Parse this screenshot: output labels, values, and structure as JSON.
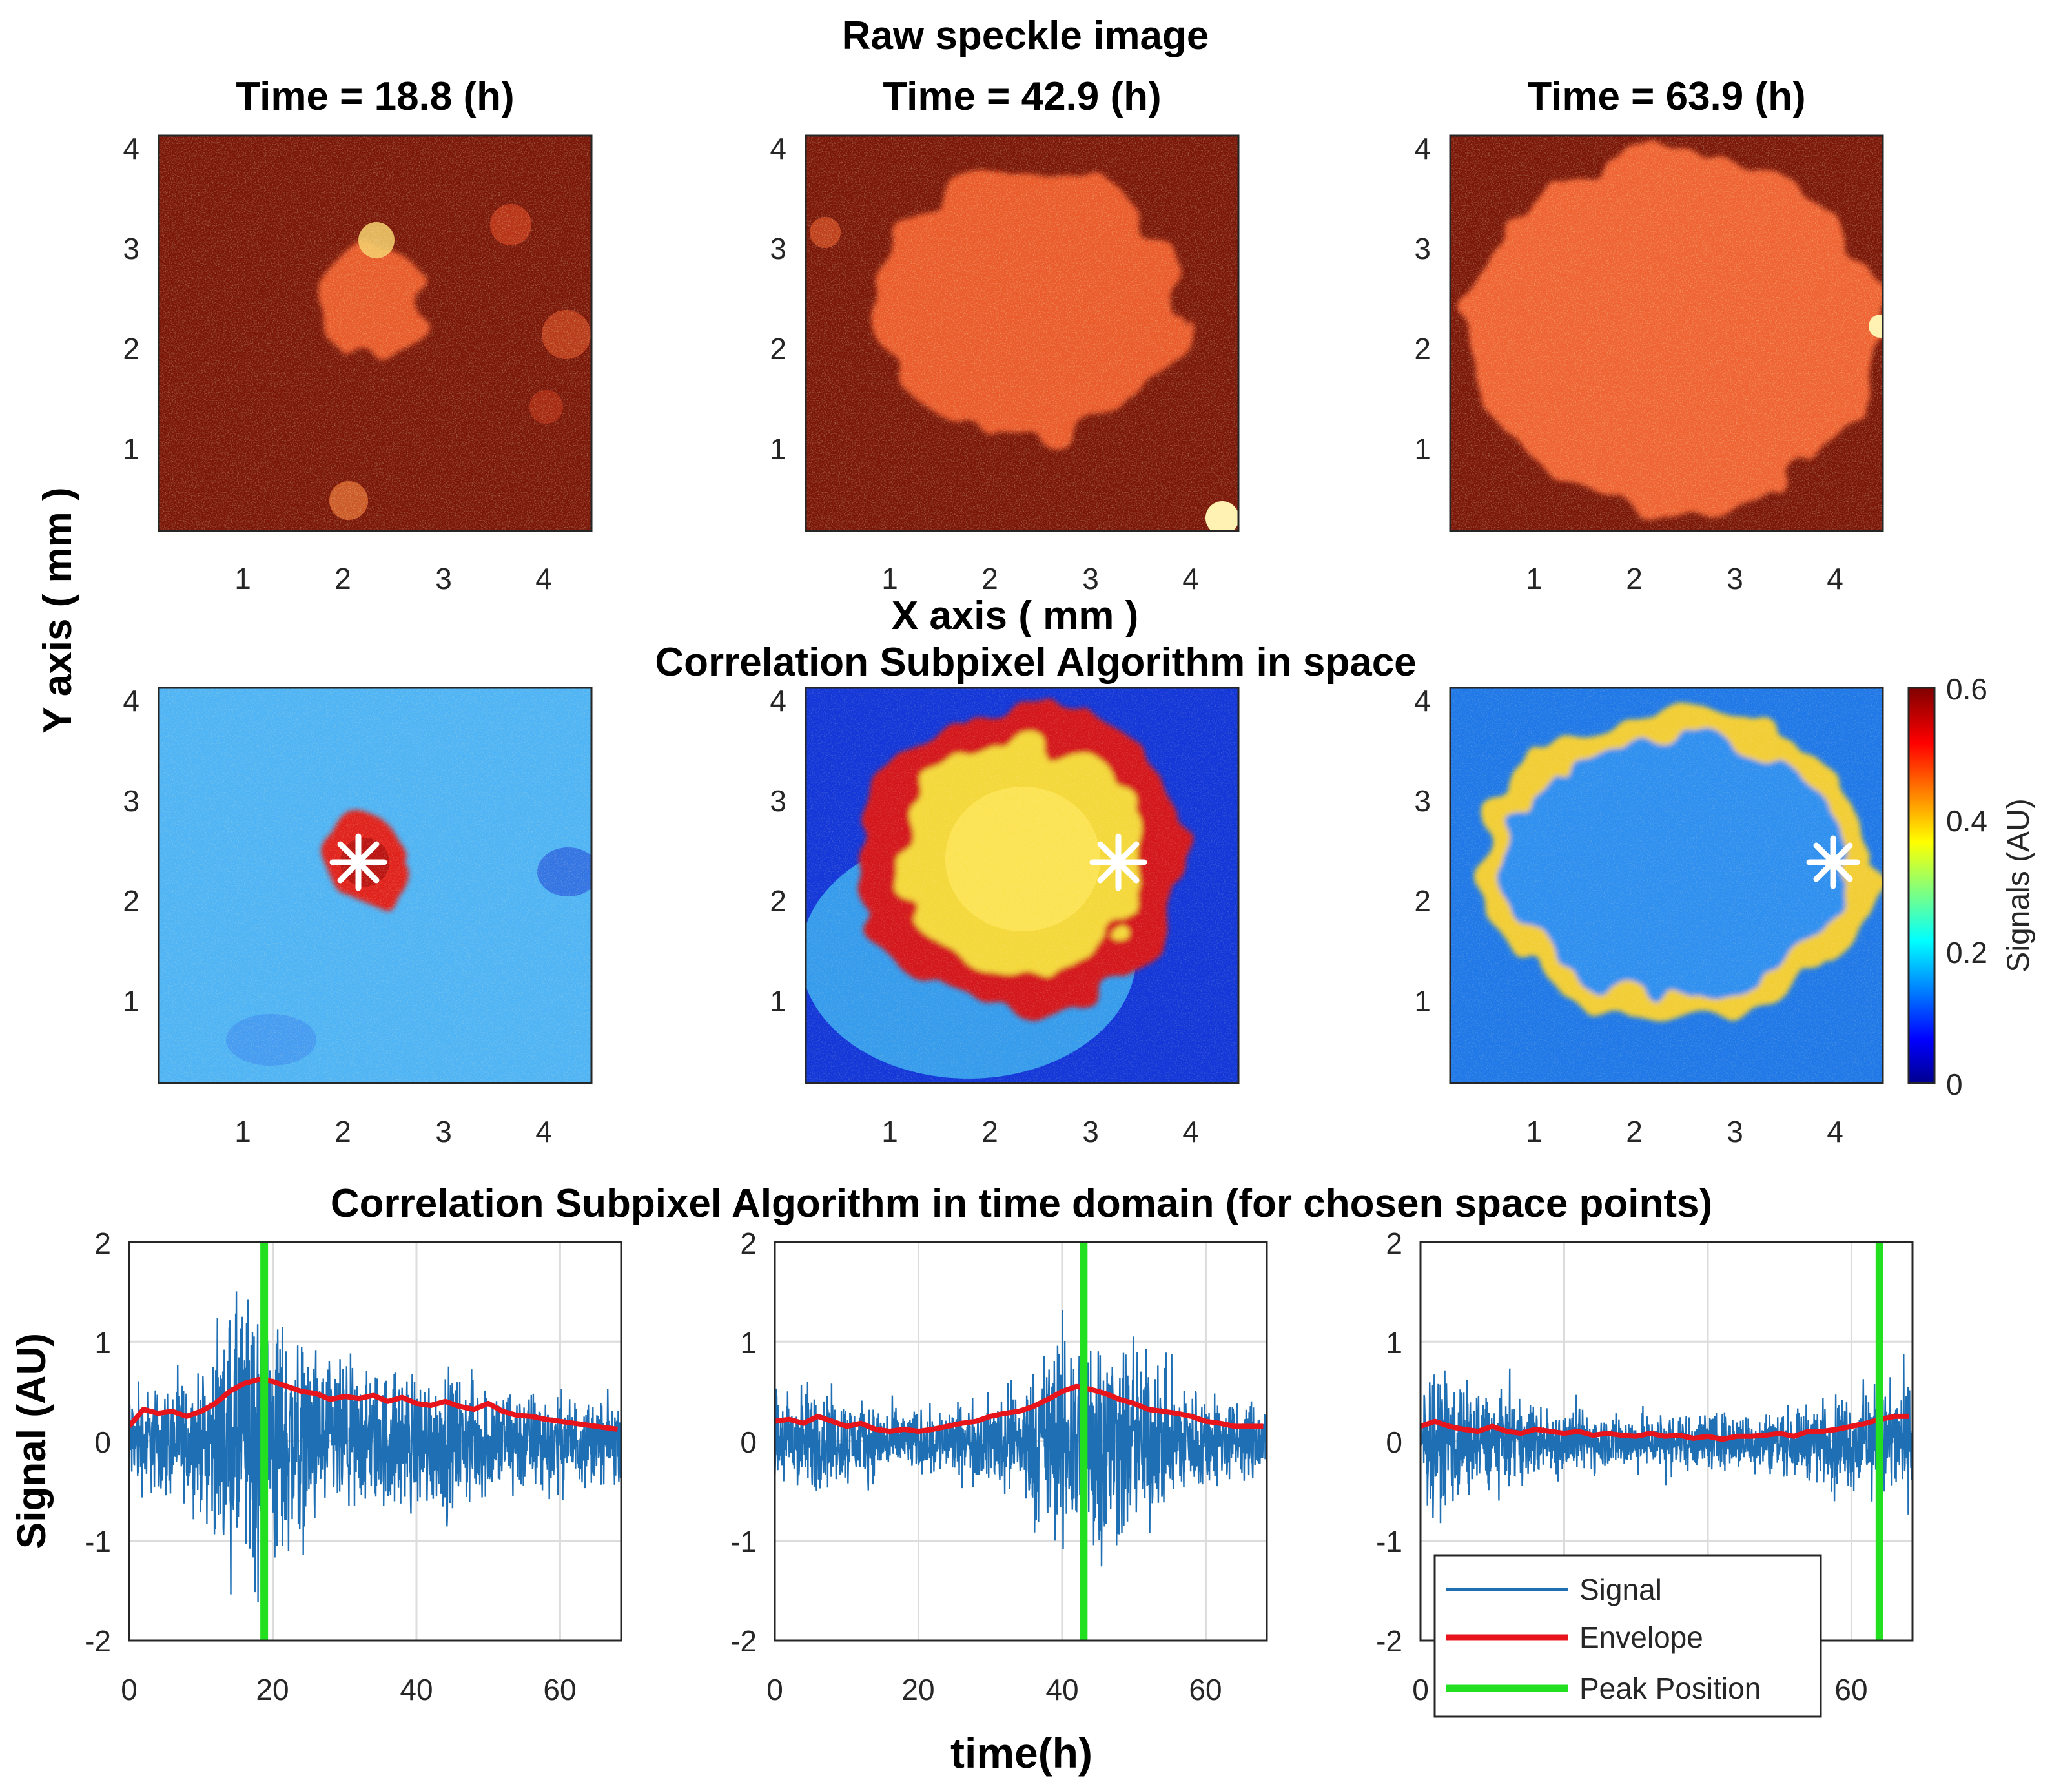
{
  "chart_data": {
    "type": "figure",
    "headings": {
      "row1": "Raw speckle image",
      "row2": "Correlation Subpixel Algorithm in space",
      "row3": "Correlation Subpixel Algorithm in time domain (for chosen space points)"
    },
    "axis_labels": {
      "image_x": "X axis ( mm )",
      "image_y": "Y axis ( mm )",
      "signal_x": "time(h)",
      "signal_y": "Signal (AU)"
    },
    "time_titles": [
      "Time = 18.8 (h)",
      "Time = 42.9 (h)",
      "Time = 63.9 (h)"
    ],
    "image_ticks": {
      "x": [
        "1",
        "2",
        "3",
        "4"
      ],
      "y": [
        "1",
        "2",
        "3",
        "4"
      ]
    },
    "image_extent_mm": {
      "x": [
        0.3,
        4.6
      ],
      "y": [
        0.3,
        4.3
      ]
    },
    "raw_images": [
      {
        "time_h": 18.8,
        "growth_center_mm": [
          2.2,
          2.4
        ],
        "growth_radius_mm": 0.55
      },
      {
        "time_h": 42.9,
        "growth_center_mm": [
          2.6,
          2.45
        ],
        "growth_radius_mm": 1.55
      },
      {
        "time_h": 63.9,
        "growth_center_mm": [
          2.6,
          2.3
        ],
        "growth_radius_mm": 2.1
      }
    ],
    "correlation_maps": [
      {
        "marker_mm": [
          2.2,
          2.4
        ],
        "ring_center_mm": [
          2.2,
          2.4
        ],
        "ring_radius_mm": 0.4
      },
      {
        "marker_mm": [
          3.3,
          2.4
        ],
        "ring_center_mm": [
          2.6,
          2.45
        ],
        "ring_radius_mm": 1.35
      },
      {
        "marker_mm": [
          4.0,
          2.35
        ],
        "ring_center_mm": [
          2.6,
          2.3
        ],
        "ring_radius_mm": 1.95
      }
    ],
    "colorbar": {
      "label": "Signals (AU)",
      "range": [
        0,
        0.6
      ],
      "ticks": [
        "0",
        "0.2",
        "0.4",
        "0.6"
      ],
      "colormap": "jet"
    },
    "signal_axes": {
      "xlim": [
        0,
        68.5
      ],
      "ylim": [
        -2,
        2
      ],
      "xticks": [
        "0",
        "20",
        "40",
        "60"
      ],
      "yticks": [
        "2",
        "1",
        "0",
        "-1",
        "-2"
      ]
    },
    "time_signals": [
      {
        "peak_time_h": 18.8,
        "envelope": {
          "t": [
            0,
            2,
            4,
            6,
            8,
            10,
            12,
            14,
            16,
            18,
            20,
            22,
            24,
            26,
            28,
            30,
            32,
            34,
            36,
            38,
            40,
            42,
            44,
            46,
            48,
            50,
            52,
            54,
            56,
            58,
            60,
            62,
            64,
            66,
            68
          ],
          "v": [
            0.15,
            0.32,
            0.28,
            0.3,
            0.25,
            0.3,
            0.38,
            0.5,
            0.58,
            0.62,
            0.6,
            0.55,
            0.5,
            0.48,
            0.42,
            0.45,
            0.43,
            0.46,
            0.4,
            0.44,
            0.38,
            0.36,
            0.4,
            0.35,
            0.32,
            0.38,
            0.3,
            0.26,
            0.25,
            0.22,
            0.2,
            0.18,
            0.16,
            0.14,
            0.12
          ]
        },
        "amplitude": {
          "t": [
            0,
            5,
            10,
            14,
            18,
            22,
            28,
            34,
            40,
            46,
            52,
            58,
            64,
            68
          ],
          "v": [
            0.7,
            0.8,
            0.9,
            1.8,
            2.3,
            1.6,
            1.1,
            1.0,
            1.0,
            0.9,
            0.8,
            0.7,
            0.6,
            0.55
          ]
        }
      },
      {
        "peak_time_h": 43.0,
        "envelope": {
          "t": [
            0,
            2,
            4,
            6,
            8,
            10,
            12,
            14,
            16,
            18,
            20,
            22,
            24,
            26,
            28,
            30,
            32,
            34,
            36,
            38,
            40,
            42,
            44,
            46,
            48,
            50,
            52,
            54,
            56,
            58,
            60,
            62,
            64,
            66,
            68
          ],
          "v": [
            0.2,
            0.22,
            0.18,
            0.25,
            0.2,
            0.15,
            0.18,
            0.12,
            0.1,
            0.12,
            0.1,
            0.12,
            0.15,
            0.18,
            0.2,
            0.25,
            0.28,
            0.3,
            0.35,
            0.42,
            0.5,
            0.55,
            0.52,
            0.48,
            0.42,
            0.38,
            0.32,
            0.3,
            0.28,
            0.25,
            0.2,
            0.18,
            0.15,
            0.15,
            0.15
          ]
        },
        "amplitude": {
          "t": [
            0,
            5,
            10,
            15,
            20,
            25,
            30,
            35,
            40,
            44,
            48,
            52,
            56,
            60,
            64,
            68
          ],
          "v": [
            0.7,
            0.8,
            0.6,
            0.5,
            0.45,
            0.5,
            0.6,
            0.9,
            1.6,
            1.8,
            1.5,
            1.2,
            0.9,
            0.7,
            0.6,
            0.55
          ]
        }
      },
      {
        "peak_time_h": 63.9,
        "envelope": {
          "t": [
            0,
            2,
            4,
            6,
            8,
            10,
            12,
            14,
            16,
            18,
            20,
            22,
            24,
            26,
            28,
            30,
            32,
            34,
            36,
            38,
            40,
            42,
            44,
            46,
            48,
            50,
            52,
            54,
            56,
            58,
            60,
            62,
            64,
            66,
            68
          ],
          "v": [
            0.15,
            0.2,
            0.15,
            0.12,
            0.1,
            0.15,
            0.1,
            0.08,
            0.12,
            0.1,
            0.08,
            0.1,
            0.06,
            0.08,
            0.06,
            0.05,
            0.08,
            0.05,
            0.06,
            0.03,
            0.05,
            0.02,
            0.05,
            0.05,
            0.06,
            0.08,
            0.05,
            0.1,
            0.1,
            0.12,
            0.15,
            0.18,
            0.22,
            0.25,
            0.25
          ]
        },
        "amplitude": {
          "t": [
            0,
            4,
            8,
            12,
            16,
            20,
            26,
            32,
            38,
            44,
            50,
            56,
            60,
            64,
            68
          ],
          "v": [
            0.8,
            1.0,
            0.7,
            0.6,
            0.5,
            0.45,
            0.4,
            0.4,
            0.4,
            0.4,
            0.45,
            0.55,
            0.7,
            0.8,
            0.8
          ]
        }
      }
    ],
    "legend": {
      "placement": "lower-left of third panel",
      "entries": [
        {
          "label": "Signal",
          "color": "#1f6fb4"
        },
        {
          "label": "Envelope",
          "color": "#e8141c"
        },
        {
          "label": "Peak Position",
          "color": "#22e01f"
        }
      ]
    }
  }
}
